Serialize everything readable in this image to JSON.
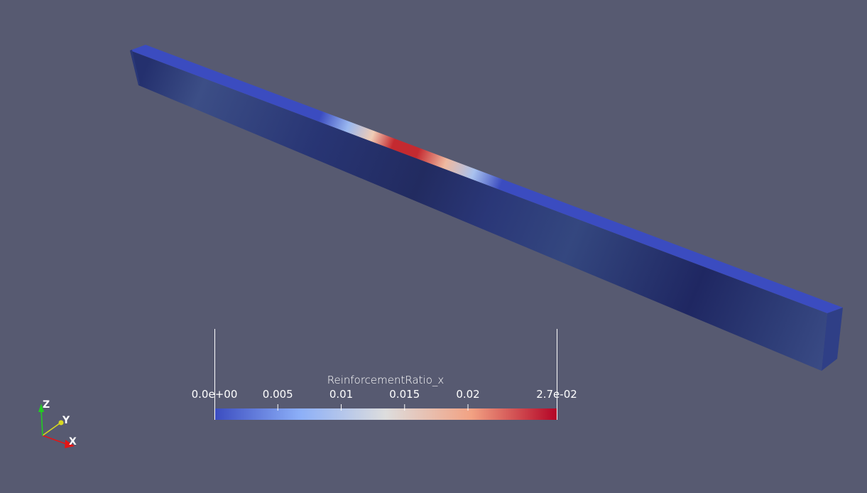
{
  "scalar_bar": {
    "title": "ReinforcementRatio_x",
    "min_label": "0.0e+00",
    "max_label": "2.7e-02",
    "min_value": 0.0,
    "max_value": 0.027,
    "ticks": [
      {
        "label": "0.005",
        "value": 0.005
      },
      {
        "label": "0.01",
        "value": 0.01
      },
      {
        "label": "0.015",
        "value": 0.015
      },
      {
        "label": "0.02",
        "value": 0.02
      }
    ],
    "colormap": "Cool to Warm"
  },
  "orientation_axes": {
    "x_label": "X",
    "y_label": "Y",
    "z_label": "Z"
  },
  "colors": {
    "background": "#575a71",
    "low": "#3b4cc0",
    "mid": "#dddddd",
    "high": "#b40426",
    "x_axis": "#e51515",
    "y_axis": "#d8d820",
    "z_axis": "#22cc22"
  }
}
